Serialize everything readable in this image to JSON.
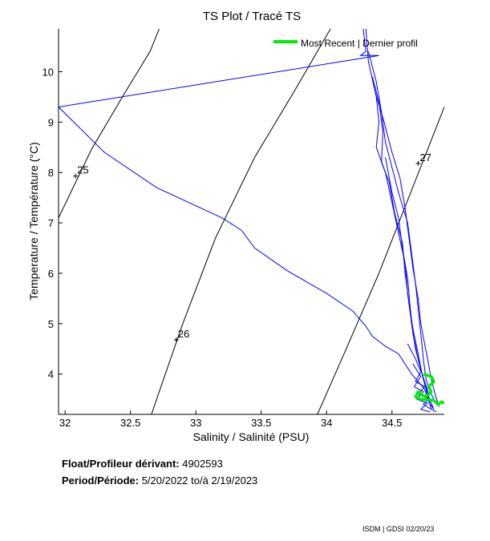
{
  "chart_data": {
    "type": "line",
    "title": "TS Plot / Tracé TS",
    "xlabel": "Salinity / Salinité (PSU)",
    "ylabel": "Temperature / Température (°C)",
    "xlim": [
      31.95,
      34.9
    ],
    "ylim": [
      3.2,
      10.85
    ],
    "xticks": [
      32,
      32.5,
      33,
      33.5,
      34,
      34.5
    ],
    "xtick_labels": [
      "32",
      "32.5",
      "33",
      "33.5",
      "34",
      "34.5"
    ],
    "yticks": [
      4,
      5,
      6,
      7,
      8,
      9,
      10
    ],
    "ytick_labels": [
      "4",
      "5",
      "6",
      "7",
      "8",
      "9",
      "10"
    ],
    "grid": false,
    "legend": {
      "label": "Most Recent | Dernier profil",
      "color": "#00ee00",
      "placement": "top-right"
    },
    "density_contours": [
      {
        "label": "25",
        "label_point": [
          32.08,
          7.93
        ],
        "points": [
          [
            31.95,
            7.1
          ],
          [
            32.2,
            8.45
          ],
          [
            32.45,
            9.55
          ],
          [
            32.65,
            10.4
          ],
          [
            32.72,
            10.85
          ]
        ]
      },
      {
        "label": "26",
        "label_point": [
          32.85,
          4.68
        ],
        "points": [
          [
            32.66,
            3.2
          ],
          [
            32.9,
            5.0
          ],
          [
            33.15,
            6.7
          ],
          [
            33.45,
            8.3
          ],
          [
            33.75,
            9.6
          ],
          [
            34.03,
            10.85
          ]
        ]
      },
      {
        "label": "27",
        "label_point": [
          34.7,
          8.18
        ],
        "points": [
          [
            33.93,
            3.2
          ],
          [
            34.15,
            4.5
          ],
          [
            34.4,
            6.0
          ],
          [
            34.62,
            7.45
          ],
          [
            34.9,
            9.3
          ]
        ]
      }
    ],
    "series": [
      {
        "color": "#0000ff",
        "points": [
          [
            34.28,
            10.85
          ],
          [
            34.3,
            10.4
          ],
          [
            34.26,
            10.32
          ],
          [
            34.4,
            10.32
          ],
          [
            31.95,
            9.3
          ],
          [
            32.3,
            8.4
          ],
          [
            32.7,
            7.7
          ],
          [
            33.2,
            7.1
          ],
          [
            33.35,
            6.85
          ],
          [
            33.45,
            6.5
          ],
          [
            33.7,
            6.05
          ],
          [
            34.0,
            5.6
          ],
          [
            34.2,
            5.25
          ],
          [
            34.3,
            4.95
          ],
          [
            34.35,
            4.75
          ],
          [
            34.45,
            4.55
          ],
          [
            34.55,
            4.4
          ],
          [
            34.6,
            4.2
          ],
          [
            34.65,
            4.0
          ],
          [
            34.7,
            3.85
          ],
          [
            34.75,
            3.7
          ],
          [
            34.78,
            3.45
          ],
          [
            34.82,
            3.3
          ]
        ]
      },
      {
        "color": "#0000ff",
        "points": [
          [
            34.3,
            10.85
          ],
          [
            34.32,
            10.2
          ],
          [
            34.38,
            9.5
          ],
          [
            34.4,
            9.0
          ],
          [
            34.38,
            8.5
          ],
          [
            34.45,
            8.0
          ],
          [
            34.5,
            7.4
          ],
          [
            34.55,
            6.8
          ],
          [
            34.6,
            6.2
          ],
          [
            34.62,
            5.6
          ],
          [
            34.65,
            5.0
          ],
          [
            34.68,
            4.5
          ],
          [
            34.72,
            4.1
          ],
          [
            34.75,
            3.8
          ],
          [
            34.78,
            3.5
          ],
          [
            34.8,
            3.3
          ]
        ]
      },
      {
        "color": "#0000ff",
        "points": [
          [
            34.32,
            10.4
          ],
          [
            34.38,
            9.8
          ],
          [
            34.42,
            9.2
          ],
          [
            34.45,
            8.6
          ],
          [
            34.5,
            8.1
          ],
          [
            34.55,
            7.6
          ],
          [
            34.62,
            7.0
          ],
          [
            34.65,
            6.4
          ],
          [
            34.68,
            5.8
          ],
          [
            34.7,
            5.3
          ],
          [
            34.72,
            4.8
          ],
          [
            34.74,
            4.3
          ],
          [
            34.76,
            3.9
          ],
          [
            34.8,
            3.6
          ],
          [
            34.84,
            3.4
          ]
        ]
      },
      {
        "color": "#0000ff",
        "points": [
          [
            34.35,
            9.9
          ],
          [
            34.4,
            9.4
          ],
          [
            34.43,
            8.8
          ],
          [
            34.42,
            8.2
          ],
          [
            34.48,
            7.8
          ],
          [
            34.52,
            7.2
          ],
          [
            34.58,
            6.6
          ],
          [
            34.6,
            6.0
          ],
          [
            34.63,
            5.4
          ],
          [
            34.66,
            4.9
          ],
          [
            34.7,
            4.4
          ],
          [
            34.73,
            4.0
          ],
          [
            34.77,
            3.7
          ],
          [
            34.79,
            3.45
          ]
        ]
      },
      {
        "color": "#0000ff",
        "points": [
          [
            34.37,
            9.6
          ],
          [
            34.44,
            9.0
          ],
          [
            34.5,
            8.4
          ],
          [
            34.56,
            7.9
          ],
          [
            34.6,
            7.3
          ],
          [
            34.63,
            6.7
          ],
          [
            34.66,
            6.1
          ],
          [
            34.7,
            5.5
          ],
          [
            34.72,
            5.0
          ],
          [
            34.75,
            4.6
          ],
          [
            34.78,
            4.2
          ],
          [
            34.8,
            3.9
          ],
          [
            34.83,
            3.6
          ],
          [
            34.86,
            3.35
          ]
        ]
      },
      {
        "color": "#0000ff",
        "points": [
          [
            34.45,
            8.3
          ],
          [
            34.5,
            7.6
          ],
          [
            34.55,
            7.1
          ],
          [
            34.58,
            6.5
          ],
          [
            34.62,
            5.9
          ],
          [
            34.64,
            5.3
          ],
          [
            34.66,
            4.8
          ],
          [
            34.7,
            4.3
          ],
          [
            34.74,
            3.9
          ],
          [
            34.78,
            3.55
          ],
          [
            34.82,
            3.3
          ]
        ]
      },
      {
        "color": "#0000ff",
        "points": [
          [
            34.62,
            4.6
          ],
          [
            34.68,
            4.3
          ],
          [
            34.72,
            4.05
          ],
          [
            34.68,
            3.85
          ],
          [
            34.75,
            3.75
          ],
          [
            34.7,
            3.6
          ],
          [
            34.78,
            3.5
          ],
          [
            34.74,
            3.4
          ],
          [
            34.8,
            3.3
          ],
          [
            34.84,
            3.25
          ]
        ]
      },
      {
        "color": "#0000ff",
        "points": [
          [
            34.66,
            4.2
          ],
          [
            34.72,
            3.95
          ],
          [
            34.67,
            3.75
          ],
          [
            34.74,
            3.65
          ],
          [
            34.69,
            3.5
          ],
          [
            34.77,
            3.42
          ],
          [
            34.72,
            3.3
          ],
          [
            34.79,
            3.25
          ]
        ]
      }
    ],
    "most_recent": {
      "color": "#00ee00",
      "points": [
        [
          34.74,
          4.0
        ],
        [
          34.8,
          3.95
        ],
        [
          34.82,
          3.85
        ],
        [
          34.78,
          3.75
        ],
        [
          34.8,
          3.65
        ],
        [
          34.76,
          3.55
        ],
        [
          34.72,
          3.6
        ],
        [
          34.7,
          3.65
        ],
        [
          34.68,
          3.55
        ],
        [
          34.72,
          3.5
        ],
        [
          34.82,
          3.48
        ],
        [
          34.85,
          3.4
        ],
        [
          34.88,
          3.45
        ],
        [
          34.9,
          3.42
        ]
      ]
    }
  },
  "info": {
    "float_label": "Float/Profileur dérivant:",
    "float_value": "4902593",
    "period_label": "Period/Période:",
    "period_value": "5/20/2022  to/à  2/19/2023"
  },
  "credit": "ISDM | GDSI  02/20/23"
}
